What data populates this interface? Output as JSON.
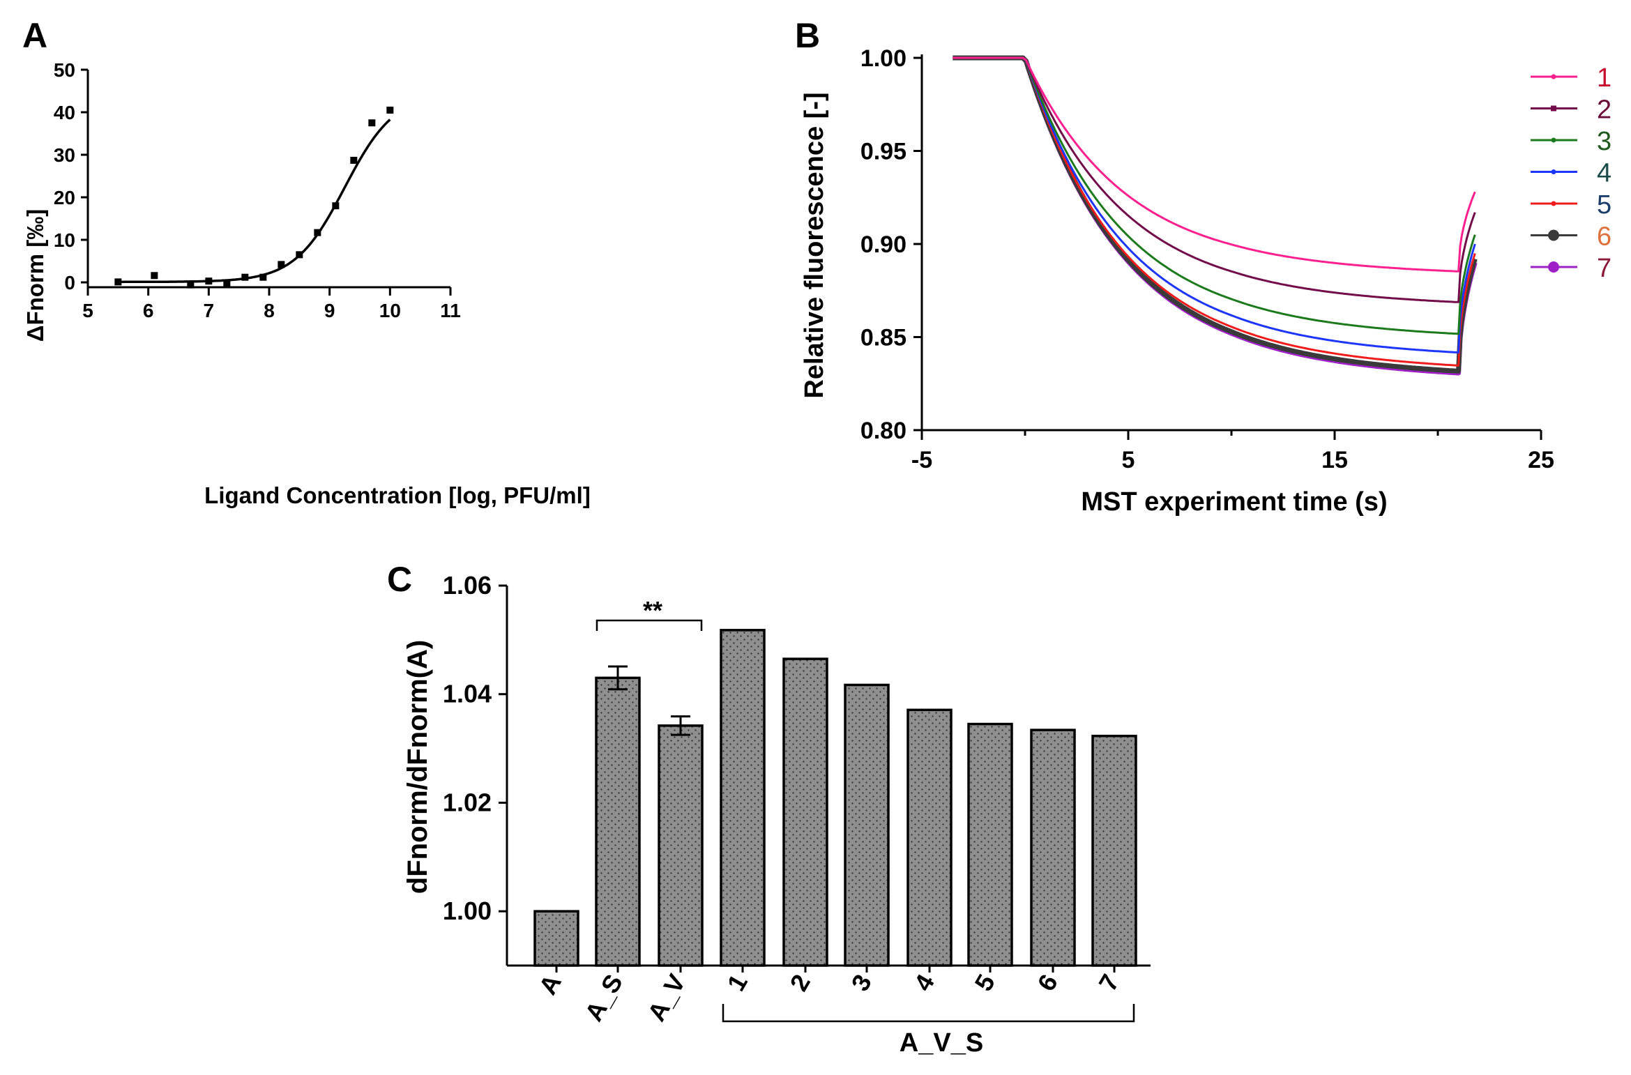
{
  "chart_data": [
    {
      "panel_letter": "A",
      "type": "scatter",
      "xlabel": "Ligand Concentration [log, PFU/ml]",
      "ylabel": "ΔFnorm [‰]",
      "xlim": [
        5,
        11
      ],
      "ylim": [
        0,
        50
      ],
      "xticks": [
        5,
        6,
        7,
        8,
        9,
        10,
        11
      ],
      "yticks": [
        0,
        10,
        20,
        30,
        40,
        50
      ],
      "points": [
        {
          "x": 5.5,
          "y": 0.1
        },
        {
          "x": 6.1,
          "y": 1.6
        },
        {
          "x": 6.7,
          "y": -0.6
        },
        {
          "x": 7.0,
          "y": 0.3
        },
        {
          "x": 7.3,
          "y": -0.5
        },
        {
          "x": 7.6,
          "y": 1.2
        },
        {
          "x": 7.9,
          "y": 1.2
        },
        {
          "x": 8.2,
          "y": 4.2
        },
        {
          "x": 8.5,
          "y": 6.5
        },
        {
          "x": 8.8,
          "y": 11.7
        },
        {
          "x": 9.1,
          "y": 18.0
        },
        {
          "x": 9.4,
          "y": 28.7
        },
        {
          "x": 9.7,
          "y": 37.5
        },
        {
          "x": 10.0,
          "y": 40.5
        }
      ],
      "fit": {
        "model": "sigmoid",
        "bottom": 0.1,
        "top": 44.5,
        "ec50_log": 9.25,
        "hill": 1.05,
        "x_range": [
          5.5,
          10.0
        ]
      }
    },
    {
      "panel_letter": "B",
      "type": "line",
      "xlabel": "MST experiment time (s)",
      "ylabel": "Relative fluorescence [-]",
      "xlim": [
        -5,
        25
      ],
      "ylim": [
        0.8,
        1.0
      ],
      "xticks": [
        -5,
        5,
        15,
        25
      ],
      "yticks": [
        0.8,
        0.85,
        0.9,
        0.95,
        1.0
      ],
      "ytick_labels": [
        "0.80",
        "0.85",
        "0.90",
        "0.95",
        "1.00"
      ],
      "time": {
        "start": -3.5,
        "drop": 0.0,
        "laser_off": 21.0,
        "end": 21.8
      },
      "series": [
        {
          "name": "1",
          "label_color": "#c8102e",
          "color": "#ff1f8e",
          "marker": "dot",
          "plateau": 0.8855,
          "back": 0.928
        },
        {
          "name": "2",
          "label_color": "#6b0b38",
          "color": "#730c4a",
          "marker": "square",
          "plateau": 0.869,
          "back": 0.917
        },
        {
          "name": "3",
          "label_color": "#1e5a1e",
          "color": "#1b7a1b",
          "marker": "dot",
          "plateau": 0.852,
          "back": 0.905
        },
        {
          "name": "4",
          "label_color": "#1a4a4a",
          "color": "#1c35ff",
          "marker": "dot",
          "plateau": 0.842,
          "back": 0.9
        },
        {
          "name": "5",
          "label_color": "#1b3e6b",
          "color": "#f01c1c",
          "marker": "dot",
          "plateau": 0.835,
          "back": 0.895
        },
        {
          "name": "6",
          "label_color": "#e0703a",
          "color": "#3a3a3a",
          "marker": "big-dot",
          "plateau": 0.832,
          "back": 0.892
        },
        {
          "name": "7",
          "label_color": "#8b1a3a",
          "color": "#a020c8",
          "marker": "big-dot",
          "plateau": 0.831,
          "back": 0.89
        }
      ]
    },
    {
      "panel_letter": "C",
      "type": "bar",
      "ylabel": "dFnorm/dFnorm(A)",
      "ylim": [
        0.99,
        1.06
      ],
      "yticks": [
        1.0,
        1.02,
        1.04,
        1.06
      ],
      "ytick_labels": [
        "1.00",
        "1.02",
        "1.04",
        "1.06"
      ],
      "categories": [
        "A",
        "A_S",
        "A_V",
        "1",
        "2",
        "3",
        "4",
        "5",
        "6",
        "7"
      ],
      "values": [
        1.0,
        1.043,
        1.0342,
        1.0518,
        1.0465,
        1.0417,
        1.0371,
        1.0345,
        1.0334,
        1.0323
      ],
      "errors": [
        0,
        0.0021,
        0.0017,
        0,
        0,
        0,
        0,
        0,
        0,
        0
      ],
      "significance": {
        "from": "A_S",
        "to": "A_V",
        "label": "**"
      },
      "group_bracket": {
        "from": "1",
        "to": "7",
        "label": "A_V_S"
      }
    }
  ]
}
